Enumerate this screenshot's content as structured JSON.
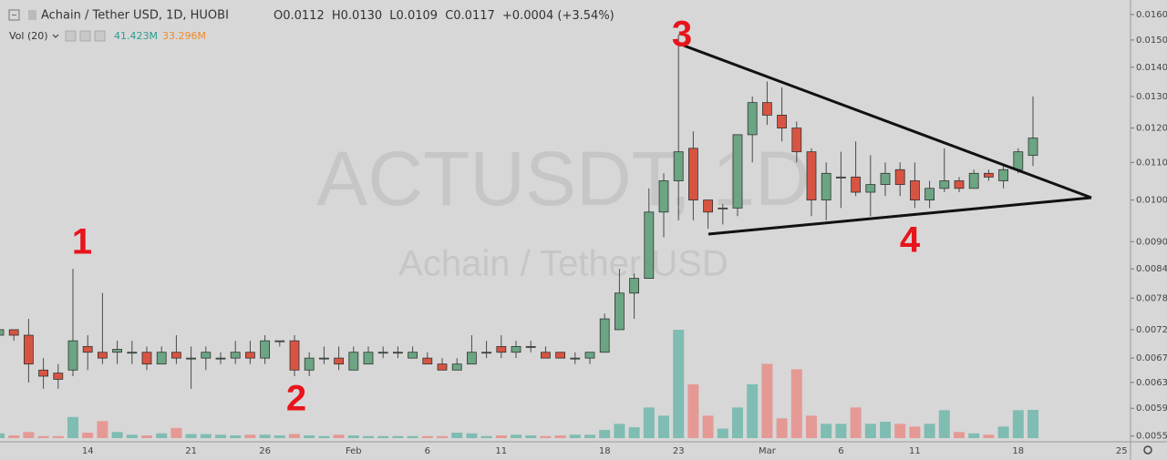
{
  "header": {
    "symbol": "Achain / Tether USD, 1D, HUOBI",
    "ohlc": [
      {
        "label": "O",
        "value": "0.0112"
      },
      {
        "label": "H",
        "value": "0.0130"
      },
      {
        "label": "L",
        "value": "0.0109"
      },
      {
        "label": "C",
        "value": "0.0117"
      }
    ],
    "change": "+0.0004 (+3.54%)",
    "volume_label": "Vol (20)",
    "volume_value": "41.423M",
    "volume_ma": "33.296M"
  },
  "chart_data": {
    "type": "candlestick",
    "watermark": [
      "ACTUSDT, 1D",
      "Achain / Tether USD"
    ],
    "annotations": [
      "1",
      "2",
      "3",
      "4"
    ],
    "categories": [
      null,
      null,
      null,
      null,
      null,
      null,
      "14",
      null,
      null,
      null,
      null,
      null,
      null,
      "21",
      null,
      null,
      null,
      null,
      "26",
      null,
      null,
      null,
      null,
      null,
      "Feb",
      null,
      null,
      null,
      null,
      "6",
      null,
      null,
      null,
      null,
      "11",
      null,
      null,
      null,
      null,
      null,
      null,
      "18",
      null,
      null,
      null,
      null,
      "23",
      null,
      null,
      null,
      null,
      null,
      "Mar",
      null,
      null,
      null,
      null,
      "6",
      null,
      null,
      null,
      null,
      "11",
      null,
      null,
      null,
      null,
      null,
      null,
      "18",
      null,
      null,
      null,
      null,
      null,
      null,
      "25"
    ],
    "open": [
      0.0071,
      0.0072,
      0.0071,
      0.0065,
      0.00645,
      0.0065,
      0.0069,
      0.0068,
      0.0068,
      0.0068,
      0.0068,
      0.0066,
      0.0068,
      0.0067,
      0.0067,
      0.0067,
      0.0067,
      0.0068,
      0.0067,
      0.007,
      0.007,
      0.0065,
      0.0067,
      0.0067,
      0.0065,
      0.0066,
      0.0068,
      0.0068,
      0.0067,
      0.0067,
      0.0066,
      0.0065,
      0.0066,
      0.0068,
      0.0069,
      0.0068,
      0.0069,
      0.0068,
      0.0068,
      0.0067,
      0.0067,
      0.0068,
      0.0072,
      0.0079,
      0.0082,
      0.0097,
      0.0105,
      0.0114,
      0.01,
      0.0098,
      0.0098,
      0.0118,
      0.0128,
      0.0124,
      0.012,
      0.0113,
      0.01,
      0.0106,
      0.0106,
      0.0102,
      0.0104,
      0.0108,
      0.0105,
      0.01,
      0.0103,
      0.0105,
      0.0103,
      0.0107,
      0.0105,
      0.0108,
      0.0112,
      null,
      null,
      null,
      null,
      null,
      null
    ],
    "high": [
      0.0073,
      0.0072,
      0.0074,
      0.0067,
      0.0066,
      0.0084,
      0.0071,
      0.0079,
      0.007,
      0.007,
      0.0069,
      0.0069,
      0.0071,
      0.0069,
      0.0069,
      0.0068,
      0.007,
      0.007,
      0.0071,
      0.007,
      0.0071,
      0.0068,
      0.0069,
      0.0069,
      0.0069,
      0.0069,
      0.0069,
      0.0069,
      0.0069,
      0.0068,
      0.0067,
      0.0067,
      0.0071,
      0.007,
      0.0071,
      0.007,
      0.007,
      0.0069,
      0.0068,
      0.0068,
      0.0068,
      0.0075,
      0.0084,
      0.0083,
      0.0103,
      0.0107,
      0.0152,
      0.0119,
      0.01,
      0.0099,
      0.0118,
      0.013,
      0.0135,
      0.0133,
      0.0122,
      0.0114,
      0.011,
      0.0113,
      0.0116,
      0.0112,
      0.011,
      0.011,
      0.011,
      0.0105,
      0.0114,
      0.0106,
      0.0108,
      0.0108,
      0.0109,
      0.0114,
      0.013,
      null,
      null,
      null,
      null,
      null,
      null
    ],
    "low": [
      0.007,
      0.007,
      0.0063,
      0.0062,
      0.0062,
      0.0064,
      0.0065,
      0.0066,
      0.0066,
      0.0066,
      0.0065,
      0.0066,
      0.0066,
      0.0062,
      0.0065,
      0.0066,
      0.0066,
      0.0066,
      0.0066,
      0.0069,
      0.0064,
      0.0064,
      0.0066,
      0.0065,
      0.0065,
      0.0066,
      0.0067,
      0.0067,
      0.0067,
      0.0066,
      0.0065,
      0.0065,
      0.0066,
      0.0067,
      0.0067,
      0.0067,
      0.0068,
      0.0067,
      0.0067,
      0.0066,
      0.0066,
      0.0068,
      0.0072,
      0.0074,
      0.0082,
      0.0091,
      0.0095,
      0.0095,
      0.0093,
      0.0094,
      0.0096,
      0.011,
      0.0121,
      0.0116,
      0.011,
      0.0096,
      0.0095,
      0.0098,
      0.0101,
      0.0096,
      0.0101,
      0.0101,
      0.0098,
      0.0098,
      0.0102,
      0.0102,
      0.0103,
      0.0105,
      0.0103,
      0.0107,
      0.0109,
      null,
      null,
      null,
      null,
      null,
      null
    ],
    "close": [
      0.0072,
      0.0071,
      0.0066,
      0.0064,
      0.00635,
      0.007,
      0.0068,
      0.0067,
      0.00685,
      0.0068,
      0.0066,
      0.0068,
      0.0067,
      0.0067,
      0.0068,
      0.0067,
      0.0068,
      0.0067,
      0.007,
      0.007,
      0.0065,
      0.0067,
      0.0067,
      0.0066,
      0.0068,
      0.0068,
      0.0068,
      0.0068,
      0.0068,
      0.0066,
      0.0065,
      0.0066,
      0.0068,
      0.0068,
      0.0068,
      0.0069,
      0.0069,
      0.0067,
      0.0067,
      0.0067,
      0.0068,
      0.0074,
      0.0079,
      0.0082,
      0.0097,
      0.0105,
      0.0113,
      0.01,
      0.0097,
      0.0098,
      0.0118,
      0.0128,
      0.0124,
      0.012,
      0.0113,
      0.01,
      0.0107,
      0.0106,
      0.0102,
      0.0104,
      0.0107,
      0.0104,
      0.01,
      0.0103,
      0.0105,
      0.0103,
      0.0107,
      0.0106,
      0.0108,
      0.0113,
      0.0117,
      null,
      null,
      null,
      null,
      null,
      null
    ],
    "volume": [
      7,
      4,
      9,
      3,
      3,
      31,
      8,
      25,
      9,
      5,
      4,
      7,
      15,
      6,
      6,
      5,
      4,
      5,
      5,
      4,
      6,
      4,
      3,
      5,
      4,
      3,
      3,
      3,
      3,
      3,
      3,
      8,
      7,
      3,
      4,
      5,
      4,
      3,
      4,
      5,
      5,
      12,
      21,
      16,
      45,
      33,
      159,
      79,
      33,
      14,
      45,
      79,
      109,
      29,
      101,
      33,
      21,
      21,
      45,
      21,
      24,
      21,
      17,
      21,
      41,
      9,
      7,
      5,
      17,
      41,
      41.423,
      null,
      null,
      null,
      null,
      null,
      null
    ],
    "up_color": "#6ba583",
    "down_color": "#d75442",
    "up_volume_color": "#7fbcb2",
    "down_volume_color": "#e59995",
    "log_scale": true,
    "grid": false,
    "ylim": [
      0.00542,
      0.0166
    ],
    "yticks": [
      {
        "value": 0.0055,
        "label": "0.0055"
      },
      {
        "value": 0.0059,
        "label": "0.0059"
      },
      {
        "value": 0.0063,
        "label": "0.0063"
      },
      {
        "value": 0.0067,
        "label": "0.0067"
      },
      {
        "value": 0.0072,
        "label": "0.0072"
      },
      {
        "value": 0.0078,
        "label": "0.0078"
      },
      {
        "value": 0.0084,
        "label": "0.0084"
      },
      {
        "value": 0.009,
        "label": "0.0090"
      },
      {
        "value": 0.01,
        "label": "0.0100"
      },
      {
        "value": 0.011,
        "label": "0.0110"
      },
      {
        "value": 0.012,
        "label": "0.0120"
      },
      {
        "value": 0.013,
        "label": "0.0130"
      },
      {
        "value": 0.014,
        "label": "0.0140"
      },
      {
        "value": 0.015,
        "label": "0.0150"
      },
      {
        "value": 0.016,
        "label": "0.0160"
      }
    ]
  }
}
